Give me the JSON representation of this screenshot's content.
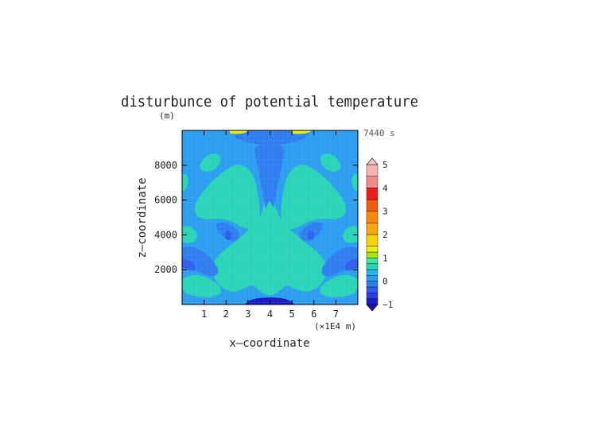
{
  "chart_data": {
    "type": "heatmap",
    "title": "disturbunce of potential temperature",
    "y_unit_label": "(m)",
    "time_label": "7440 s",
    "xlabel": "x—coordinate",
    "ylabel": "z—coordinate",
    "x_unit_label": "(×1E4 m)",
    "xlim": [
      0,
      8
    ],
    "ylim": [
      0,
      10000
    ],
    "x_ticks": [
      1,
      2,
      3,
      4,
      5,
      6,
      7
    ],
    "x_tick_labels": [
      "1",
      "2",
      "3",
      "4",
      "5",
      "6",
      "7"
    ],
    "y_ticks": [
      2000,
      4000,
      6000,
      8000
    ],
    "y_tick_labels": [
      "2000",
      "4000",
      "6000",
      "8000"
    ],
    "colorbar": {
      "min": -1,
      "max": 5,
      "labels": [
        "5",
        "4",
        "3",
        "2",
        "1",
        "0",
        "−1"
      ],
      "label_values": [
        5,
        4,
        3,
        2,
        1,
        0,
        -1
      ],
      "levels": [
        {
          "lo": 4.5,
          "color": "#f7b3b3"
        },
        {
          "lo": 4.0,
          "color": "#f28a8a"
        },
        {
          "lo": 3.5,
          "color": "#ee1c1c"
        },
        {
          "lo": 3.0,
          "color": "#f25a0c"
        },
        {
          "lo": 2.5,
          "color": "#f8880a"
        },
        {
          "lo": 2.0,
          "color": "#fba80e"
        },
        {
          "lo": 1.5,
          "color": "#f7d30a"
        },
        {
          "lo": 1.25,
          "color": "#ecf00f"
        },
        {
          "lo": 1.0,
          "color": "#a8e60c"
        },
        {
          "lo": 0.75,
          "color": "#3ee6a0"
        },
        {
          "lo": 0.5,
          "color": "#2ad4b6"
        },
        {
          "lo": 0.25,
          "color": "#22b8e6"
        },
        {
          "lo": 0.0,
          "color": "#2c9ef0"
        },
        {
          "lo": -0.25,
          "color": "#2f7ef0"
        },
        {
          "lo": -0.5,
          "color": "#2f5ef0"
        },
        {
          "lo": -0.75,
          "color": "#2c3de8"
        },
        {
          "lo": -1.0,
          "color": "#1c1cc8"
        }
      ],
      "over_color": "#f7c8c8",
      "under_color": "#1010b8"
    },
    "field_regions": [
      {
        "name": "background",
        "value": 0.1
      },
      {
        "name": "central-plume",
        "value": 0.6
      },
      {
        "name": "left-lobe",
        "value": 0.6
      },
      {
        "name": "right-lobe",
        "value": 0.6
      },
      {
        "name": "lower-left-lobe",
        "value": 0.6
      },
      {
        "name": "lower-right-lobe",
        "value": 0.6
      },
      {
        "name": "left-edge-blob",
        "value": 0.6
      },
      {
        "name": "right-edge-blob",
        "value": 0.6
      },
      {
        "name": "left-cap",
        "value": 0.6
      },
      {
        "name": "right-cap",
        "value": 0.6
      },
      {
        "name": "upper-left-tongue",
        "value": 0.6
      },
      {
        "name": "upper-right-tongue",
        "value": 0.6
      },
      {
        "name": "central-shadow",
        "value": -0.2
      },
      {
        "name": "side-shadow-left",
        "value": -0.2
      },
      {
        "name": "side-shadow-right",
        "value": -0.2
      },
      {
        "name": "top-band",
        "value": -0.2
      },
      {
        "name": "low-band-left",
        "value": -0.2
      },
      {
        "name": "low-band-right",
        "value": -0.2
      },
      {
        "name": "bottom-left-dark",
        "value": -0.45
      },
      {
        "name": "bottom-right-dark",
        "value": -0.45
      },
      {
        "name": "left-spot",
        "value": -0.5
      },
      {
        "name": "right-spot",
        "value": -0.5
      },
      {
        "name": "bottom-center-dark",
        "value": -0.95
      },
      {
        "name": "top-left-warm",
        "value": 1.3
      },
      {
        "name": "top-right-warm",
        "value": 1.3
      }
    ]
  }
}
